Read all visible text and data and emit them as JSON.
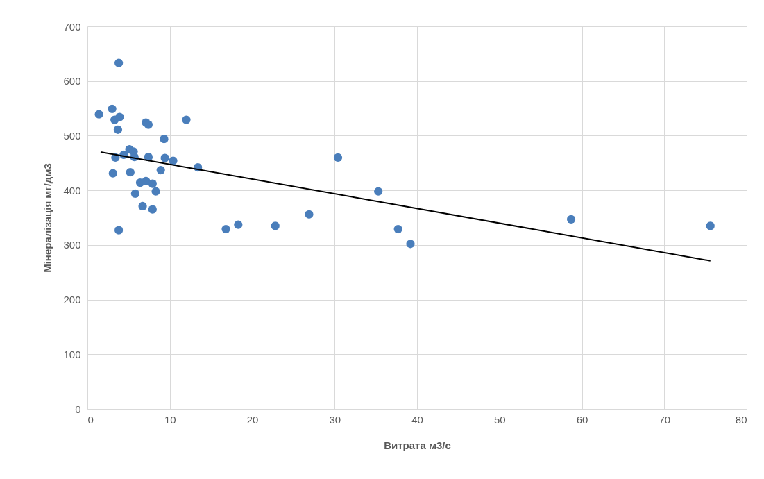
{
  "chart_data": {
    "type": "scatter",
    "xlabel": "Витрата м3/с",
    "ylabel": "Мінералізація мг/дм3",
    "xlim": [
      0,
      80
    ],
    "xticks": [
      0,
      10,
      20,
      30,
      40,
      50,
      60,
      70,
      80
    ],
    "ylim": [
      0,
      700
    ],
    "yticks": [
      0,
      100,
      200,
      300,
      400,
      500,
      600,
      700
    ],
    "grid": true,
    "series": [
      {
        "marker": "circle",
        "color": "#4a7ebb",
        "x": [
          1.4,
          3.8,
          3.0,
          3.3,
          3.9,
          3.7,
          3.4,
          3.1,
          3.8,
          4.4,
          5.1,
          5.6,
          5.2,
          5.7,
          5.8,
          6.4,
          6.7,
          7.1,
          7.1,
          7.4,
          7.4,
          7.9,
          8.3,
          7.9,
          8.9,
          9.3,
          9.4,
          10.4,
          12.0,
          13.4,
          16.8,
          18.3,
          22.8,
          26.9,
          30.4,
          35.3,
          37.7,
          39.2,
          58.7,
          75.6
        ],
        "values": [
          539,
          633,
          549,
          529,
          534,
          511,
          460,
          431,
          327,
          465,
          475,
          471,
          433,
          461,
          394,
          414,
          371,
          417,
          524,
          520,
          461,
          412,
          398,
          365,
          437,
          494,
          459,
          454,
          529,
          442,
          329,
          337,
          335,
          356,
          460,
          398,
          329,
          302,
          347,
          335
        ]
      },
      {
        "type": "line",
        "color": "#000000",
        "x": [
          1.6,
          75.6
        ],
        "values": [
          470,
          271
        ]
      }
    ]
  }
}
